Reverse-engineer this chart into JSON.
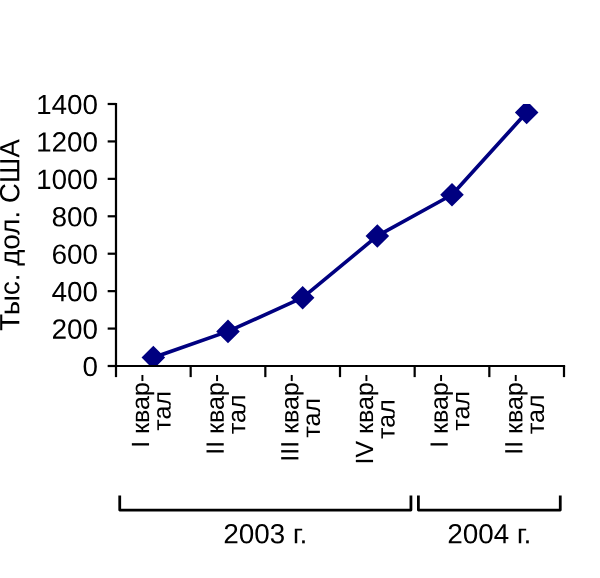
{
  "chart_data": {
    "type": "line",
    "ylabel": "Тыс. дол. США",
    "categories": [
      "I квар-\nтал",
      "II квар-\nтал",
      "III квар-\nтал",
      "IV квар-\nтал",
      "I квар-\nтал",
      "II квар-\nтал"
    ],
    "series": [
      {
        "color": "#000080",
        "values": [
          45,
          185,
          365,
          695,
          915,
          1355
        ]
      }
    ],
    "ylim": [
      0,
      1400
    ],
    "yticks": [
      0,
      200,
      400,
      600,
      800,
      1000,
      1200,
      1400
    ],
    "marker": "diamond",
    "line_style": "solid",
    "grid": false,
    "legend": false,
    "annotations": [
      "2003 г.",
      "2004 г."
    ]
  }
}
